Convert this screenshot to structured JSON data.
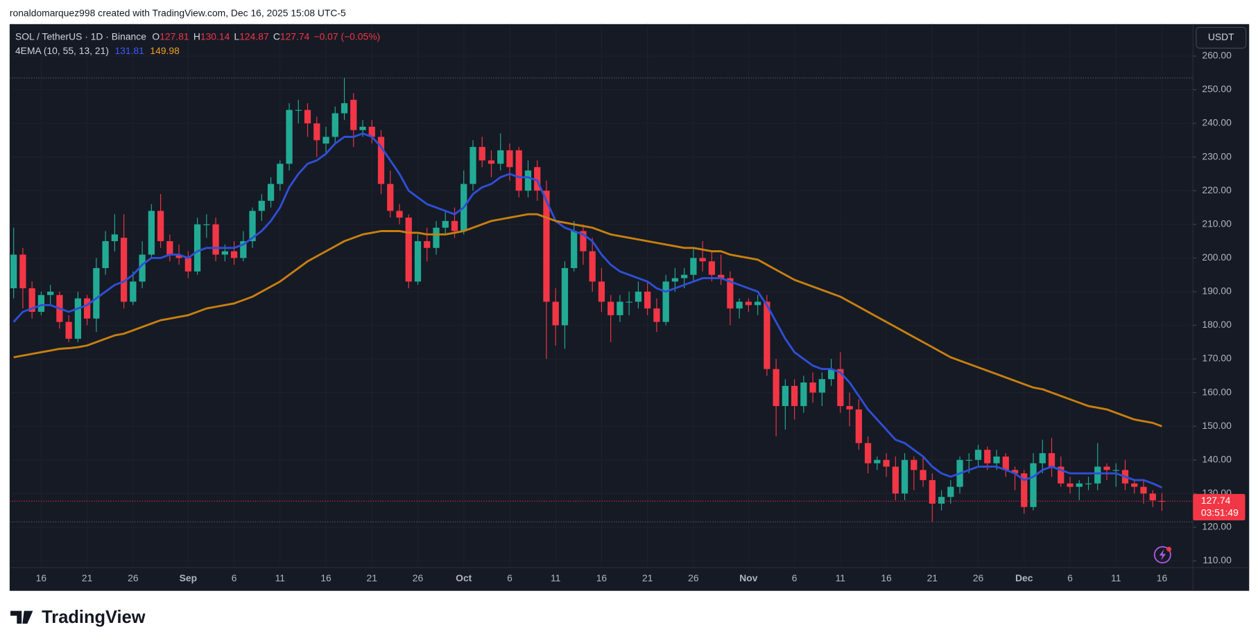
{
  "header": {
    "credit": "ronaldomarquez998 created with TradingView.com, Dec 16, 2025 15:08 UTC-5",
    "symbol": "SOL / TetherUS · 1D · Binance",
    "o_label": "O",
    "h_label": "H",
    "l_label": "L",
    "c_label": "C",
    "change": "−0.07 (−0.05%)",
    "indicator": "4EMA (10, 55, 13, 21)",
    "currency": "USDT",
    "countdown": "03:51:49",
    "logo": "TradingView"
  },
  "chart_data": {
    "type": "candlestick",
    "categories": [
      "Aug 13",
      "Aug 14",
      "Aug 15",
      "Aug 16",
      "Aug 17",
      "Aug 18",
      "Aug 19",
      "Aug 20",
      "Aug 21",
      "Aug 22",
      "Aug 23",
      "Aug 24",
      "Aug 25",
      "Aug 26",
      "Aug 27",
      "Aug 28",
      "Aug 29",
      "Aug 30",
      "Aug 31",
      "Sep 1",
      "Sep 2",
      "Sep 3",
      "Sep 4",
      "Sep 5",
      "Sep 6",
      "Sep 7",
      "Sep 8",
      "Sep 9",
      "Sep 10",
      "Sep 11",
      "Sep 12",
      "Sep 13",
      "Sep 14",
      "Sep 15",
      "Sep 16",
      "Sep 17",
      "Sep 18",
      "Sep 19",
      "Sep 20",
      "Sep 21",
      "Sep 22",
      "Sep 23",
      "Sep 24",
      "Sep 25",
      "Sep 26",
      "Sep 27",
      "Sep 28",
      "Sep 29",
      "Sep 30",
      "Oct 1",
      "Oct 2",
      "Oct 3",
      "Oct 4",
      "Oct 5",
      "Oct 6",
      "Oct 7",
      "Oct 8",
      "Oct 9",
      "Oct 10",
      "Oct 11",
      "Oct 12",
      "Oct 13",
      "Oct 14",
      "Oct 15",
      "Oct 16",
      "Oct 17",
      "Oct 18",
      "Oct 19",
      "Oct 20",
      "Oct 21",
      "Oct 22",
      "Oct 23",
      "Oct 24",
      "Oct 25",
      "Oct 26",
      "Oct 27",
      "Oct 28",
      "Oct 29",
      "Oct 30",
      "Oct 31",
      "Nov 1",
      "Nov 2",
      "Nov 3",
      "Nov 4",
      "Nov 5",
      "Nov 6",
      "Nov 7",
      "Nov 8",
      "Nov 9",
      "Nov 10",
      "Nov 11",
      "Nov 12",
      "Nov 13",
      "Nov 14",
      "Nov 15",
      "Nov 16",
      "Nov 17",
      "Nov 18",
      "Nov 19",
      "Nov 20",
      "Nov 21",
      "Nov 22",
      "Nov 23",
      "Nov 24",
      "Nov 25",
      "Nov 26",
      "Nov 27",
      "Nov 28",
      "Nov 29",
      "Nov 30",
      "Dec 1",
      "Dec 2",
      "Dec 3",
      "Dec 4",
      "Dec 5",
      "Dec 6",
      "Dec 7",
      "Dec 8",
      "Dec 9",
      "Dec 10",
      "Dec 11",
      "Dec 12",
      "Dec 13",
      "Dec 14",
      "Dec 15",
      "Dec 16"
    ],
    "open": [
      191,
      201,
      191,
      184,
      189,
      189,
      181,
      176,
      188,
      182,
      197,
      205,
      206,
      187,
      193,
      201,
      214,
      205,
      201,
      200,
      196,
      210,
      210,
      201,
      202,
      200,
      205,
      214,
      217,
      222,
      228,
      244,
      244,
      240,
      234,
      236,
      243,
      247,
      238,
      239,
      236,
      222,
      214,
      212,
      193,
      205,
      203,
      209,
      211,
      208,
      222,
      233,
      229,
      228,
      232,
      232,
      220,
      227,
      220,
      187,
      180,
      197,
      208,
      202,
      193,
      187,
      183,
      187,
      187,
      190,
      185,
      181,
      193,
      194,
      195,
      200,
      199,
      195,
      194,
      185,
      187,
      186,
      187,
      167,
      156,
      162,
      156,
      163,
      160,
      164,
      167,
      156,
      155,
      145,
      139,
      140,
      138,
      130,
      140,
      137,
      134,
      127,
      129,
      132,
      140,
      140,
      143,
      139,
      141,
      137,
      136,
      126,
      139,
      142,
      138,
      133,
      132,
      133,
      133,
      138,
      137,
      137,
      133,
      132,
      130,
      127.81
    ],
    "high": [
      209,
      203,
      193,
      190,
      192,
      190,
      183,
      190,
      189,
      200,
      208,
      213,
      213,
      196,
      205,
      216,
      219,
      207,
      204,
      202,
      212,
      213,
      212,
      204,
      205,
      208,
      215,
      219,
      224,
      229,
      246,
      247,
      246,
      242,
      239,
      245,
      253.5,
      249,
      241,
      241,
      238,
      226,
      216,
      213,
      207,
      209,
      211,
      214,
      215,
      226,
      235,
      236,
      232,
      237,
      234,
      233,
      229,
      229,
      223,
      191,
      199,
      211,
      210,
      206,
      197,
      189,
      189,
      190,
      193,
      193,
      188,
      195,
      197,
      197,
      203,
      205,
      202,
      201,
      196,
      188,
      188,
      189,
      189,
      170,
      164,
      164,
      165,
      166,
      166,
      170,
      172,
      160,
      158,
      147,
      141,
      142,
      141,
      142,
      141,
      141,
      136,
      131,
      134,
      141,
      142,
      144.5,
      144,
      143,
      142,
      138,
      137,
      142,
      146,
      146.5,
      141,
      135,
      134,
      135,
      145,
      139,
      139,
      140,
      134,
      134,
      131,
      130.14
    ],
    "low": [
      188,
      185,
      182,
      183,
      186,
      179,
      175,
      175,
      180,
      178,
      195,
      202,
      185,
      186,
      191,
      200,
      203,
      199,
      198,
      194,
      195,
      206,
      199,
      199,
      198,
      199,
      203,
      211,
      215,
      220,
      226,
      240,
      236,
      230,
      231,
      234,
      241,
      233,
      236,
      234,
      219,
      212,
      210,
      191,
      192,
      199,
      201,
      207,
      206,
      207,
      220,
      227,
      224,
      226,
      223,
      218,
      218,
      217,
      170,
      174,
      173,
      196,
      198,
      190,
      184,
      175,
      181,
      183,
      185,
      183,
      178,
      180,
      190,
      191,
      193,
      196,
      193,
      192,
      180,
      182,
      184,
      183,
      165,
      147,
      149,
      152,
      154,
      157,
      156,
      162,
      154,
      150,
      143,
      136,
      137,
      135,
      128,
      128,
      131,
      132,
      121.6,
      125,
      127,
      130,
      136,
      138,
      137,
      137,
      135,
      131,
      124,
      125,
      136,
      135,
      132,
      130,
      128,
      131,
      131,
      134,
      132,
      131,
      130,
      127,
      126,
      124.87
    ],
    "close": [
      201,
      191,
      184,
      189,
      190,
      181,
      176,
      188,
      182,
      197,
      205,
      207,
      187,
      193,
      201,
      214,
      205,
      201,
      200,
      196,
      210,
      210,
      201,
      202,
      200,
      205,
      214,
      217,
      222,
      228,
      244,
      244,
      240,
      235,
      236,
      243,
      246,
      238,
      239,
      236,
      222,
      214,
      212,
      193,
      205,
      203,
      209,
      211,
      208,
      222,
      233,
      229,
      228,
      232,
      227,
      220,
      226,
      220,
      187,
      180,
      197,
      208,
      202,
      193,
      187,
      183,
      187,
      187,
      190,
      185,
      181,
      193,
      194,
      195,
      200,
      199,
      195,
      194,
      185,
      187,
      186,
      187,
      167,
      156,
      162,
      156,
      163,
      160,
      164,
      167,
      156,
      155,
      145,
      139,
      140,
      138,
      130,
      140,
      137,
      134,
      127,
      129,
      132,
      140,
      140,
      143,
      139,
      141,
      137,
      136,
      126,
      139,
      142,
      138,
      133,
      132,
      133,
      133,
      138,
      137,
      137,
      133,
      132,
      130,
      128,
      127.74
    ],
    "up_color": "#22ab94",
    "down_color": "#f23645",
    "lines": [
      {
        "color": "#2f4fd6",
        "values": [
          181,
          184,
          185,
          186,
          186,
          185,
          184,
          185,
          186,
          188,
          190,
          192,
          193,
          195,
          198,
          200,
          200,
          201,
          201,
          200,
          202,
          203,
          203,
          203,
          203,
          204,
          206,
          208,
          211,
          215,
          221,
          225,
          228,
          229,
          231,
          234,
          236,
          236,
          237,
          236,
          233,
          229,
          225,
          220,
          218,
          216,
          215,
          214,
          213,
          215,
          219,
          221,
          222,
          224,
          225,
          224,
          224,
          223,
          217,
          211,
          209,
          208,
          207,
          205,
          201,
          198,
          196,
          195,
          194,
          193,
          191,
          190,
          191,
          192,
          193,
          194,
          194,
          194,
          193,
          192,
          191,
          190,
          186,
          181,
          176,
          172,
          170,
          168,
          167,
          167,
          166,
          163,
          159,
          155,
          152,
          149,
          146,
          145,
          143,
          141,
          138,
          136,
          135,
          136,
          137,
          138,
          138,
          138,
          137,
          136,
          134,
          135,
          137,
          138,
          137,
          136,
          136,
          136,
          136,
          136,
          136,
          135,
          134,
          134,
          133,
          131.81
        ]
      },
      {
        "color": "#c8800f",
        "values": [
          170.5,
          171,
          171.5,
          172,
          172.5,
          173,
          173.2,
          173.5,
          174,
          175,
          176,
          177,
          177.5,
          178.5,
          179.5,
          180.5,
          181.5,
          182,
          182.5,
          183,
          184,
          185,
          185.5,
          186,
          186.5,
          187.5,
          188.5,
          190,
          191.5,
          193,
          195,
          197,
          199,
          200.5,
          202,
          203.5,
          205,
          206,
          207,
          207.5,
          208,
          208,
          208,
          207.5,
          207.5,
          207,
          207,
          207,
          207.5,
          208,
          209,
          210,
          211,
          211.5,
          212,
          212.5,
          213,
          213,
          212,
          211,
          210.5,
          210,
          209.5,
          209,
          208,
          207,
          206.5,
          206,
          205.5,
          205,
          204.5,
          204,
          203.5,
          203,
          203,
          202.5,
          202,
          202,
          201,
          200.5,
          200,
          199.5,
          198,
          196.5,
          195,
          193.5,
          192.5,
          191.5,
          190.5,
          189.5,
          188.5,
          187,
          185.5,
          184,
          182.5,
          181,
          179.5,
          178,
          176.5,
          175,
          173.5,
          172,
          170.5,
          169.5,
          168.5,
          167.5,
          166.5,
          165.5,
          164.5,
          163.5,
          162.5,
          161.5,
          161,
          160,
          159,
          158,
          157,
          156,
          155.5,
          155,
          154,
          153,
          152,
          151.5,
          151,
          149.98
        ]
      }
    ],
    "hlines": [
      253.5,
      121.6
    ],
    "ylim": [
      108,
      269.5
    ],
    "yticks": [
      {
        "value": 110,
        "label": "110.00"
      },
      {
        "value": 120,
        "label": "120.00"
      },
      {
        "value": 130,
        "label": "130.00"
      },
      {
        "value": 140,
        "label": "140.00"
      },
      {
        "value": 150,
        "label": "150.00"
      },
      {
        "value": 160,
        "label": "160.00"
      },
      {
        "value": 170,
        "label": "170.00"
      },
      {
        "value": 180,
        "label": "180.00"
      },
      {
        "value": 190,
        "label": "190.00"
      },
      {
        "value": 200,
        "label": "200.00"
      },
      {
        "value": 210,
        "label": "210.00"
      },
      {
        "value": 220,
        "label": "220.00"
      },
      {
        "value": 230,
        "label": "230.00"
      },
      {
        "value": 240,
        "label": "240.00"
      },
      {
        "value": 250,
        "label": "250.00"
      },
      {
        "value": 260,
        "label": "260.00"
      }
    ],
    "xticks": [
      {
        "value": "Aug 16",
        "label": "16"
      },
      {
        "value": "Aug 21",
        "label": "21"
      },
      {
        "value": "Aug 26",
        "label": "26"
      },
      {
        "value": "Sep 1",
        "label": "Sep"
      },
      {
        "value": "Sep 6",
        "label": "6"
      },
      {
        "value": "Sep 11",
        "label": "11"
      },
      {
        "value": "Sep 16",
        "label": "16"
      },
      {
        "value": "Sep 21",
        "label": "21"
      },
      {
        "value": "Sep 26",
        "label": "26"
      },
      {
        "value": "Oct 1",
        "label": "Oct"
      },
      {
        "value": "Oct 6",
        "label": "6"
      },
      {
        "value": "Oct 11",
        "label": "11"
      },
      {
        "value": "Oct 16",
        "label": "16"
      },
      {
        "value": "Oct 21",
        "label": "21"
      },
      {
        "value": "Oct 26",
        "label": "26"
      },
      {
        "value": "Nov 1",
        "label": "Nov"
      },
      {
        "value": "Nov 6",
        "label": "6"
      },
      {
        "value": "Nov 11",
        "label": "11"
      },
      {
        "value": "Nov 16",
        "label": "16"
      },
      {
        "value": "Nov 21",
        "label": "21"
      },
      {
        "value": "Nov 26",
        "label": "26"
      },
      {
        "value": "Dec 1",
        "label": "Dec"
      },
      {
        "value": "Dec 6",
        "label": "6"
      },
      {
        "value": "Dec 11",
        "label": "11"
      },
      {
        "value": "Dec 16",
        "label": "16"
      }
    ],
    "grid": true
  }
}
